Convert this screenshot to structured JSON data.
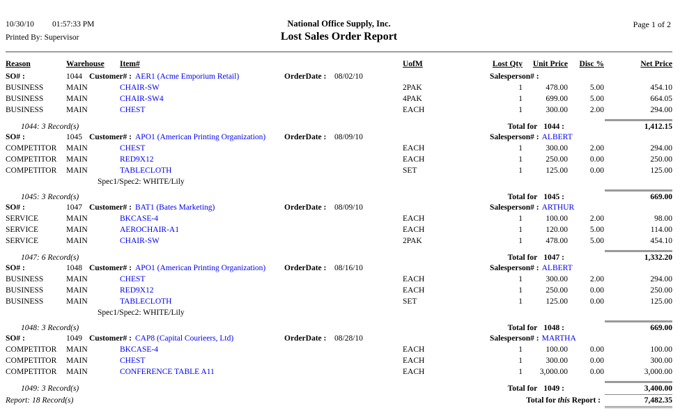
{
  "header": {
    "date": "10/30/10",
    "time": "01:57:33 PM",
    "printed_by": "Printed By: Supervisor",
    "company": "National Office Supply, Inc.",
    "title": "Lost Sales Order Report",
    "page": "Page 1 of 2"
  },
  "columns": {
    "reason": "Reason",
    "warehouse": "Warehouse",
    "item": "Item#",
    "uofm": "UofM",
    "lost_qty": "Lost Qty",
    "unit_price": "Unit Price",
    "disc": "Disc %",
    "net_price": "Net Price"
  },
  "labels": {
    "so": "SO# :",
    "customer": "Customer# :",
    "order_date": "OrderDate :",
    "salesperson": "Salesperson# :",
    "total_for": "Total for"
  },
  "link_color": "#0000EE",
  "report": {
    "sections": [
      {
        "so": "1044",
        "customer": "AER1 (Acme Emporium Retail)",
        "order_date": "08/02/10",
        "salesperson": "",
        "rows": [
          {
            "reason": "BUSINESS",
            "warehouse": "MAIN",
            "item": "CHAIR-SW",
            "uofm": "2PAK",
            "qty": "1",
            "unit": "478.00",
            "disc": "5.00",
            "net": "454.10"
          },
          {
            "reason": "BUSINESS",
            "warehouse": "MAIN",
            "item": "CHAIR-SW4",
            "uofm": "4PAK",
            "qty": "1",
            "unit": "699.00",
            "disc": "5.00",
            "net": "664.05"
          },
          {
            "reason": "BUSINESS",
            "warehouse": "MAIN",
            "item": "CHEST",
            "uofm": "EACH",
            "qty": "1",
            "unit": "300.00",
            "disc": "2.00",
            "net": "294.00"
          }
        ],
        "spec": null,
        "record_note": "1044: 3 Record(s)",
        "total_num": "1044 :",
        "total": "1,412.15"
      },
      {
        "so": "1045",
        "customer": "APO1 (American Printing Organization)",
        "order_date": "08/09/10",
        "salesperson": "ALBERT",
        "rows": [
          {
            "reason": "COMPETITOR",
            "warehouse": "MAIN",
            "item": "CHEST",
            "uofm": "EACH",
            "qty": "1",
            "unit": "300.00",
            "disc": "2.00",
            "net": "294.00"
          },
          {
            "reason": "COMPETITOR",
            "warehouse": "MAIN",
            "item": "RED9X12",
            "uofm": "EACH",
            "qty": "1",
            "unit": "250.00",
            "disc": "0.00",
            "net": "250.00"
          },
          {
            "reason": "COMPETITOR",
            "warehouse": "MAIN",
            "item": "TABLECLOTH",
            "uofm": "SET",
            "qty": "1",
            "unit": "125.00",
            "disc": "0.00",
            "net": "125.00"
          }
        ],
        "spec": "Spec1/Spec2: WHITE/Lily",
        "record_note": "1045: 3 Record(s)",
        "total_num": "1045 :",
        "total": "669.00"
      },
      {
        "so": "1047",
        "customer": "BAT1 (Bates Marketing)",
        "order_date": "08/09/10",
        "salesperson": "ARTHUR",
        "rows": [
          {
            "reason": "SERVICE",
            "warehouse": "MAIN",
            "item": "BKCASE-4",
            "uofm": "EACH",
            "qty": "1",
            "unit": "100.00",
            "disc": "2.00",
            "net": "98.00"
          },
          {
            "reason": "SERVICE",
            "warehouse": "MAIN",
            "item": "AEROCHAIR-A1",
            "uofm": "EACH",
            "qty": "1",
            "unit": "120.00",
            "disc": "5.00",
            "net": "114.00"
          },
          {
            "reason": "SERVICE",
            "warehouse": "MAIN",
            "item": "CHAIR-SW",
            "uofm": "2PAK",
            "qty": "1",
            "unit": "478.00",
            "disc": "5.00",
            "net": "454.10"
          }
        ],
        "spec": null,
        "record_note": "1047: 6 Record(s)",
        "total_num": "1047 :",
        "total": "1,332.20"
      },
      {
        "so": "1048",
        "customer": "APO1 (American Printing Organization)",
        "order_date": "08/16/10",
        "salesperson": "ALBERT",
        "rows": [
          {
            "reason": "BUSINESS",
            "warehouse": "MAIN",
            "item": "CHEST",
            "uofm": "EACH",
            "qty": "1",
            "unit": "300.00",
            "disc": "2.00",
            "net": "294.00"
          },
          {
            "reason": "BUSINESS",
            "warehouse": "MAIN",
            "item": "RED9X12",
            "uofm": "EACH",
            "qty": "1",
            "unit": "250.00",
            "disc": "0.00",
            "net": "250.00"
          },
          {
            "reason": "BUSINESS",
            "warehouse": "MAIN",
            "item": "TABLECLOTH",
            "uofm": "SET",
            "qty": "1",
            "unit": "125.00",
            "disc": "0.00",
            "net": "125.00"
          }
        ],
        "spec": "Spec1/Spec2: WHITE/Lily",
        "record_note": "1048: 3 Record(s)",
        "total_num": "1048 :",
        "total": "669.00"
      },
      {
        "so": "1049",
        "customer": "CAP8 (Capital Courieers, Ltd)",
        "order_date": "08/28/10",
        "salesperson": "MARTHA",
        "rows": [
          {
            "reason": "COMPETITOR",
            "warehouse": "MAIN",
            "item": "BKCASE-4",
            "uofm": "EACH",
            "qty": "1",
            "unit": "100.00",
            "disc": "0.00",
            "net": "100.00"
          },
          {
            "reason": "COMPETITOR",
            "warehouse": "MAIN",
            "item": "CHEST",
            "uofm": "EACH",
            "qty": "1",
            "unit": "300.00",
            "disc": "0.00",
            "net": "300.00"
          },
          {
            "reason": "COMPETITOR",
            "warehouse": "MAIN",
            "item": "CONFERENCE TABLE A11",
            "uofm": "EACH",
            "qty": "1",
            "unit": "3,000.00",
            "disc": "0.00",
            "net": "3,000.00"
          }
        ],
        "spec": null,
        "record_note": "1049: 3 Record(s)",
        "total_num": "1049 :",
        "total": "3,400.00"
      }
    ],
    "footer": {
      "record_note": "Report: 18 Record(s)",
      "total_label_pre": "Total for",
      "total_label_italic": "this",
      "total_label_post": "Report :",
      "total": "7,482.35"
    }
  }
}
